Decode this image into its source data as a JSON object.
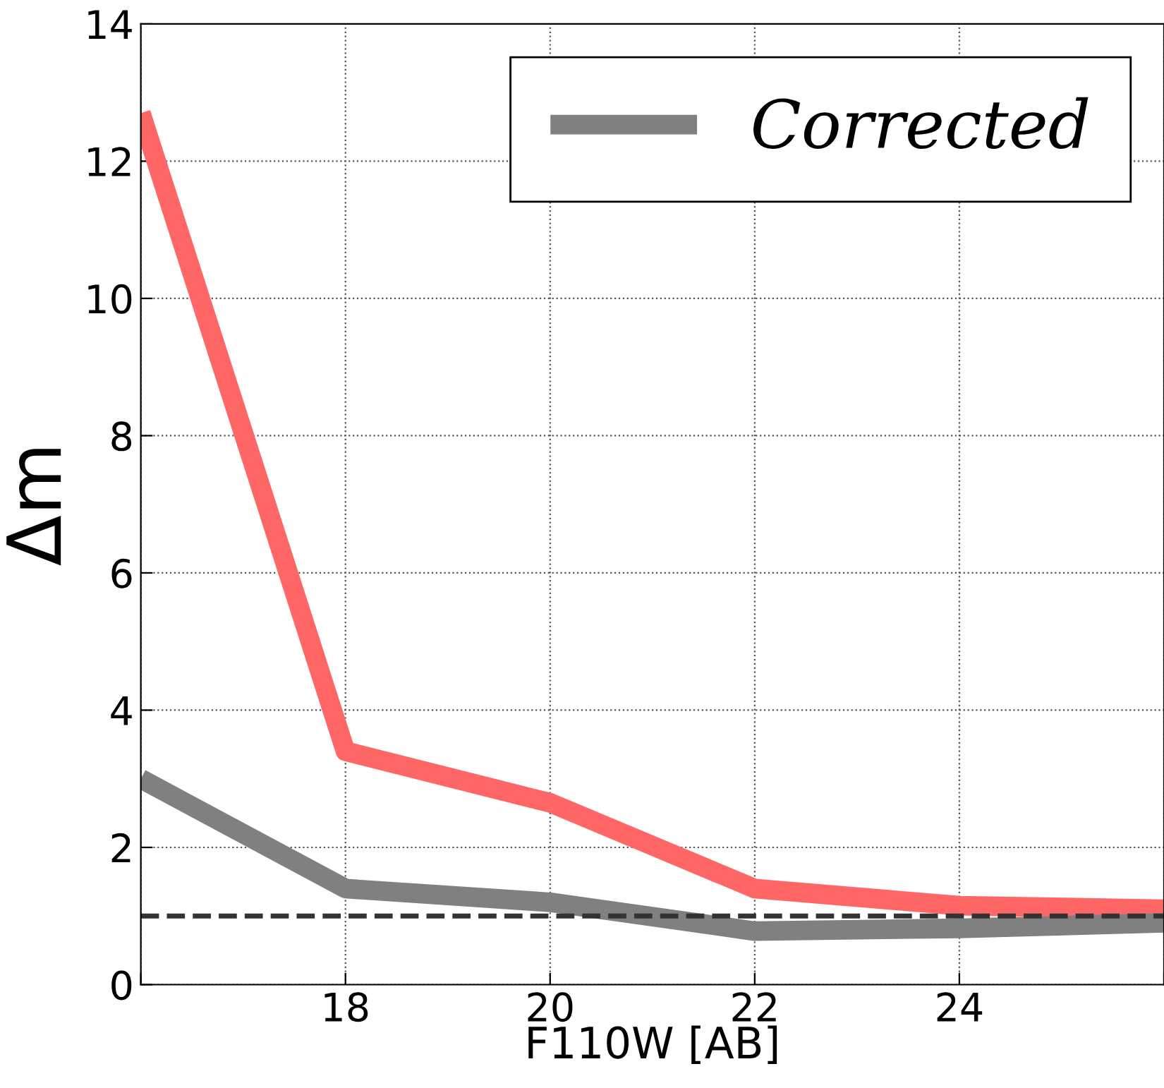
{
  "chart_data": {
    "type": "line",
    "xlabel": "F110W [AB]",
    "ylabel": "Δm",
    "x": [
      16,
      18,
      20,
      22,
      24,
      26
    ],
    "series": [
      {
        "color": "#ff6666",
        "values": [
          12.7,
          3.4,
          2.65,
          1.4,
          1.15,
          1.1
        ]
      },
      {
        "name": "Corrected",
        "color": "#808080",
        "values": [
          3.0,
          1.4,
          1.2,
          0.78,
          0.82,
          0.9
        ]
      }
    ],
    "xlim": [
      16,
      26
    ],
    "xticks": [
      {
        "value": 16,
        "label": null
      },
      18,
      20,
      22,
      24,
      {
        "value": 26,
        "label": null
      }
    ],
    "ylim": [
      0,
      14
    ],
    "yticks": [
      0,
      2,
      4,
      6,
      8,
      10,
      12,
      14
    ],
    "ref_lines": [
      {
        "axis": "y",
        "value": 1,
        "color": "#333333",
        "line_style": "dashed"
      }
    ],
    "grid": true,
    "legend": "top right",
    "marker": "none",
    "line_style": "solid"
  }
}
